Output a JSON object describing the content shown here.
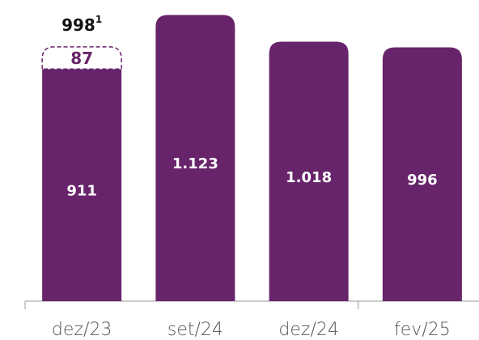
{
  "chart_data": {
    "type": "bar",
    "categories": [
      "dez/23",
      "set/24",
      "dez/24",
      "fev/25"
    ],
    "series": [
      {
        "color": "#68246a",
        "values": [
          911,
          1123,
          1018,
          996
        ],
        "value_labels": [
          "911",
          "1.123",
          "1.018",
          "996"
        ]
      },
      {
        "color": "#68246a",
        "style": "dashed",
        "values": [
          87,
          null,
          null,
          null
        ],
        "value_labels": [
          "87",
          null,
          null,
          null
        ]
      }
    ],
    "annotations": [
      {
        "text": "998",
        "superscript": "1",
        "category": 0
      }
    ],
    "ylim": [
      0,
      1150
    ],
    "grid": false
  }
}
